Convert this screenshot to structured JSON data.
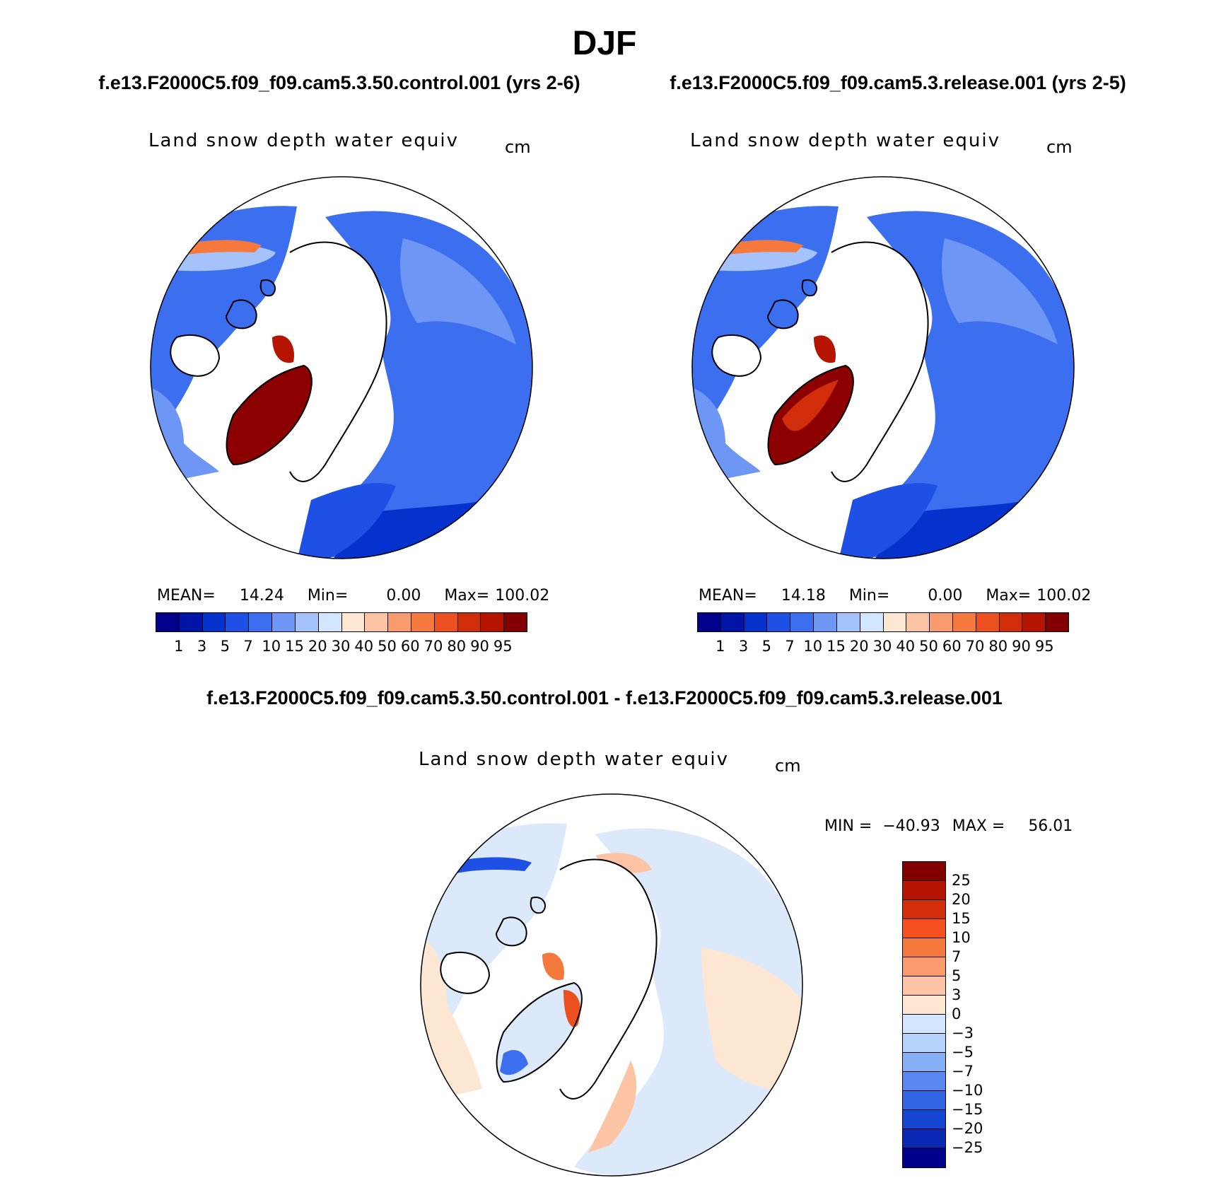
{
  "title": "DJF",
  "panels": [
    {
      "case": "f.e13.F2000C5.f09_f09.cam5.3.50.control.001 (yrs 2-6)",
      "variable": "Land snow depth water equiv",
      "units": "cm",
      "mean_label": "MEAN=",
      "mean_value": "14.24",
      "min_label": "Min=",
      "min_value": "0.00",
      "max_label": "Max=",
      "max_value": "100.02"
    },
    {
      "case": "f.e13.F2000C5.f09_f09.cam5.3.release.001 (yrs 2-5)",
      "variable": "Land snow depth water equiv",
      "units": "cm",
      "mean_label": "MEAN=",
      "mean_value": "14.18",
      "min_label": "Min=",
      "min_value": "0.00",
      "max_label": "Max=",
      "max_value": "100.02"
    }
  ],
  "abs_colorbar": {
    "colors": [
      "#00008c",
      "#0014a8",
      "#0532cc",
      "#1e50e6",
      "#3c6ef0",
      "#6e96f5",
      "#a5c3fa",
      "#d2e6ff",
      "#fde6d2",
      "#fcc3a5",
      "#fa9b6e",
      "#f5783c",
      "#eb501e",
      "#d22d0a",
      "#b41400",
      "#820000"
    ],
    "labels": [
      "1",
      "3",
      "5",
      "7",
      "10",
      "15",
      "20",
      "30",
      "40",
      "50",
      "60",
      "70",
      "80",
      "90",
      "95"
    ]
  },
  "diff": {
    "title": "f.e13.F2000C5.f09_f09.cam5.3.50.control.001 - f.e13.F2000C5.f09_f09.cam5.3.release.001",
    "variable": "Land snow depth water equiv",
    "units": "cm",
    "min_label": "MIN =",
    "min_value": "−40.93",
    "max_label": "MAX =",
    "max_value": "56.01",
    "colorbar_colors": [
      "#820000",
      "#b41400",
      "#d22d0a",
      "#f55020",
      "#f5783c",
      "#fa9b6e",
      "#fcc3a5",
      "#fde6d2",
      "#d2e6ff",
      "#b4d2fa",
      "#87aff5",
      "#5a87f0",
      "#3264e6",
      "#1446d2",
      "#0a28b4",
      "#00008c"
    ],
    "colorbar_labels": [
      "25",
      "20",
      "15",
      "10",
      "7",
      "5",
      "3",
      "0",
      "−3",
      "−5",
      "−7",
      "−10",
      "−15",
      "−20",
      "−25"
    ]
  },
  "colors": {
    "land_outline": "#000000",
    "greenland_abs": "#8c0000",
    "snow_base_abs": "#3a64e0",
    "diff_base": "#dce9fb"
  }
}
